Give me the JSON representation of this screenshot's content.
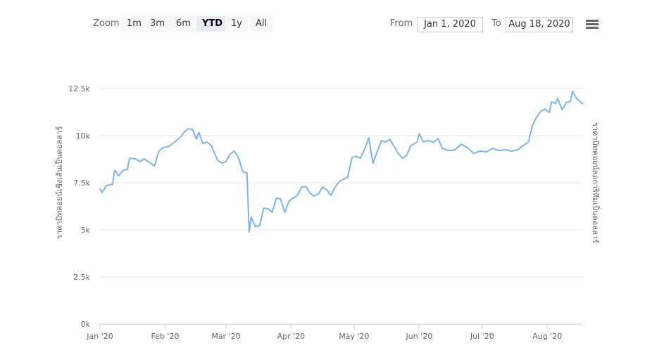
{
  "toolbar": {
    "zoom_label": "Zoom",
    "buttons": [
      "1m",
      "3m",
      "6m",
      "YTD",
      "1y",
      "All"
    ],
    "selected": "YTD",
    "from_label": "From",
    "from": "Jan 1, 2020",
    "to_label": "To",
    "to": "Aug 18, 2020"
  },
  "chart_data": {
    "type": "line",
    "y_label": "ราคาบิทคอยน์เชิงเส้นเป็นดอลลาร์",
    "y2_label": "ราคาบิทคอยน์ลอการิทึมเป็นดอลลาร์",
    "xlim": [
      "2020-01-01",
      "2020-08-18"
    ],
    "xticks": [
      {
        "value": "2020-01-01",
        "label": "Jan '20"
      },
      {
        "value": "2020-02-01",
        "label": "Feb '20"
      },
      {
        "value": "2020-03-01",
        "label": "Mar '20"
      },
      {
        "value": "2020-04-01",
        "label": "Apr '20"
      },
      {
        "value": "2020-05-01",
        "label": "May '20"
      },
      {
        "value": "2020-06-01",
        "label": "Jun '20"
      },
      {
        "value": "2020-07-01",
        "label": "Jul '20"
      },
      {
        "value": "2020-08-01",
        "label": "Aug '20"
      }
    ],
    "ylim": [
      0,
      12500
    ],
    "yticks": [
      {
        "value": 0,
        "label": "0k"
      },
      {
        "value": 2500,
        "label": "2.5k"
      },
      {
        "value": 5000,
        "label": "5k"
      },
      {
        "value": 7500,
        "label": "7.5k"
      },
      {
        "value": 10000,
        "label": "10k"
      },
      {
        "value": 12500,
        "label": "12.5k"
      }
    ],
    "grid": true,
    "series": [
      {
        "color": "#7cb5ec",
        "x": [
          "2020-01-01",
          "2020-01-02",
          "2020-01-04",
          "2020-01-07",
          "2020-01-08",
          "2020-01-10",
          "2020-01-12",
          "2020-01-14",
          "2020-01-15",
          "2020-01-18",
          "2020-01-20",
          "2020-01-22",
          "2020-01-25",
          "2020-01-27",
          "2020-01-29",
          "2020-01-31",
          "2020-02-03",
          "2020-02-06",
          "2020-02-09",
          "2020-02-10",
          "2020-02-12",
          "2020-02-14",
          "2020-02-16",
          "2020-02-17",
          "2020-02-19",
          "2020-02-21",
          "2020-02-23",
          "2020-02-26",
          "2020-02-28",
          "2020-03-01",
          "2020-03-03",
          "2020-03-05",
          "2020-03-07",
          "2020-03-09",
          "2020-03-11",
          "2020-03-12",
          "2020-03-13",
          "2020-03-15",
          "2020-03-17",
          "2020-03-19",
          "2020-03-21",
          "2020-03-23",
          "2020-03-25",
          "2020-03-27",
          "2020-03-29",
          "2020-03-31",
          "2020-04-02",
          "2020-04-04",
          "2020-04-06",
          "2020-04-08",
          "2020-04-10",
          "2020-04-12",
          "2020-04-14",
          "2020-04-16",
          "2020-04-18",
          "2020-04-20",
          "2020-04-22",
          "2020-04-24",
          "2020-04-28",
          "2020-04-30",
          "2020-05-02",
          "2020-05-04",
          "2020-05-06",
          "2020-05-08",
          "2020-05-10",
          "2020-05-12",
          "2020-05-14",
          "2020-05-16",
          "2020-05-18",
          "2020-05-20",
          "2020-05-22",
          "2020-05-24",
          "2020-05-26",
          "2020-05-28",
          "2020-05-31",
          "2020-06-01",
          "2020-06-03",
          "2020-06-05",
          "2020-06-08",
          "2020-06-10",
          "2020-06-12",
          "2020-06-15",
          "2020-06-18",
          "2020-06-21",
          "2020-06-24",
          "2020-06-27",
          "2020-06-30",
          "2020-07-03",
          "2020-07-06",
          "2020-07-09",
          "2020-07-12",
          "2020-07-15",
          "2020-07-18",
          "2020-07-21",
          "2020-07-23",
          "2020-07-25",
          "2020-07-27",
          "2020-07-29",
          "2020-07-31",
          "2020-08-02",
          "2020-08-03",
          "2020-08-05",
          "2020-08-06",
          "2020-08-08",
          "2020-08-10",
          "2020-08-12",
          "2020-08-13",
          "2020-08-15",
          "2020-08-18"
        ],
        "values": [
          7200,
          6980,
          7350,
          7420,
          8170,
          7870,
          8170,
          8200,
          8800,
          8770,
          8620,
          8770,
          8540,
          8390,
          9180,
          9360,
          9440,
          9700,
          10000,
          10180,
          10370,
          10330,
          9810,
          10180,
          9590,
          9660,
          9470,
          8690,
          8540,
          8620,
          9030,
          9180,
          8800,
          8090,
          8020,
          4890,
          5670,
          5180,
          5220,
          6150,
          6120,
          5930,
          6680,
          6640,
          5930,
          6530,
          6680,
          6830,
          7270,
          7310,
          6940,
          6790,
          6900,
          7270,
          7120,
          6830,
          7270,
          7570,
          7800,
          8840,
          8910,
          8800,
          9290,
          9880,
          8540,
          9140,
          9740,
          9660,
          9810,
          9440,
          9060,
          8800,
          8950,
          9470,
          9660,
          10110,
          9660,
          9740,
          9660,
          9850,
          9330,
          9210,
          9250,
          9550,
          9360,
          9060,
          9180,
          9140,
          9330,
          9210,
          9250,
          9180,
          9250,
          9510,
          9660,
          10560,
          11000,
          11300,
          11410,
          11230,
          11790,
          11710,
          11970,
          11380,
          11750,
          11820,
          12350,
          11970,
          11680
        ]
      }
    ]
  }
}
